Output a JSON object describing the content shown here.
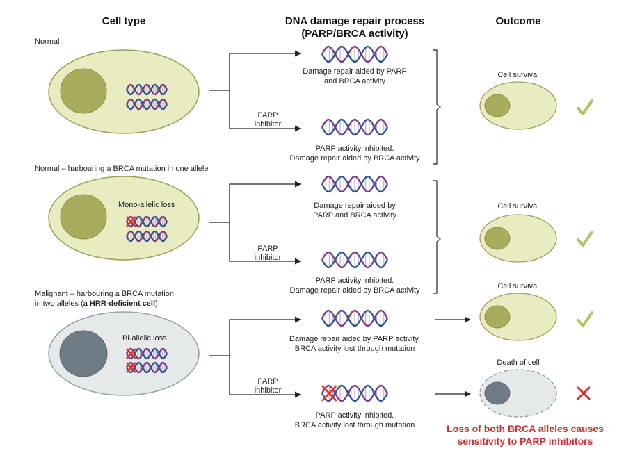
{
  "headers": {
    "cell_type": "Cell type",
    "process_line1": "DNA damage repair process",
    "process_line2": "(PARP/BRCA activity)",
    "outcome": "Outcome"
  },
  "rows": {
    "normal": {
      "label": "Normal",
      "repair_top": [
        "Damage repair aided by PARP",
        "and BRCA activity"
      ],
      "parp_label": [
        "PARP",
        "inhibitor"
      ],
      "repair_bottom": [
        "PARP activity inhibited.",
        "Damage repair aided by BRCA activity"
      ],
      "outcome": "Cell survival"
    },
    "mono": {
      "label": "Normal – harbouring a BRCA mutation in one allele",
      "cell_text": "Mono-allelic loss",
      "repair_top": [
        "Damage repair aided by",
        "PARP and BRCA activity"
      ],
      "parp_label": [
        "PARP",
        "inhibitor"
      ],
      "repair_bottom": [
        "PARP activity inhibited.",
        "Damage repair aided by BRCA activity"
      ],
      "outcome": "Cell survival"
    },
    "malignant": {
      "label_line1": "Malignant – harbouring a BRCA mutation",
      "label_line2_pre": "in two alleles (",
      "label_line2_bold": "a HRR-deficient cell",
      "label_line2_post": ")",
      "cell_text": "Bi-allelic loss",
      "repair_top": [
        "Damage repair aided by PARP activity.",
        "BRCA activity lost through mutation"
      ],
      "outcome_top": "Cell survival",
      "parp_label": [
        "PARP",
        "inhibitor"
      ],
      "repair_bottom": [
        "PARP activity inhibited.",
        "BRCA activity lost through mutation"
      ],
      "outcome_bottom": "Death of cell"
    }
  },
  "note": [
    "Loss of both BRCA alleles causes",
    "sensitivity to PARP inhibitors"
  ],
  "colors": {
    "cell_fill": "#e9ebc1",
    "cell_stroke": "#9aa05a",
    "nucleus": "#a9ac5c",
    "malignant_fill": "#e6e9ea",
    "malignant_nucleus": "#6f7c86",
    "check": "#b3c265",
    "cross": "#e2312b",
    "dna_blue": "#2f5597",
    "dna_purple": "#7a3e86",
    "dna_red": "#e2312b"
  }
}
